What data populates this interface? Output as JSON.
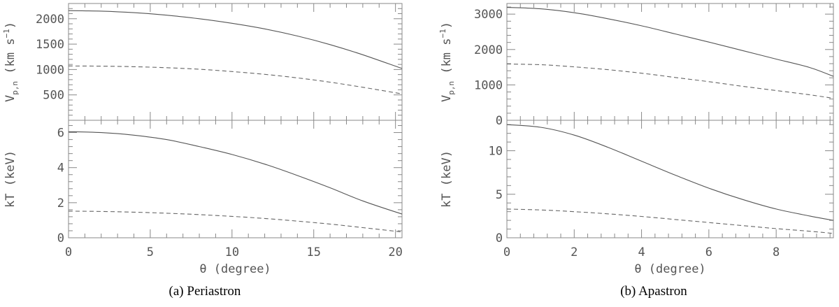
{
  "chart_data": [
    {
      "panel": "a",
      "caption": "(a)  Periastron",
      "type": "line",
      "xlabel": "θ (degree)",
      "xlim": [
        0,
        20.4
      ],
      "xticks": [
        0,
        5,
        10,
        15,
        20
      ],
      "subplots": [
        {
          "ylabel": "V",
          "ylabel_sub": "p,n",
          "ylabel_unit": "(km s",
          "ylabel_sup": "−1",
          "ylabel_close": ")",
          "ylim": [
            0,
            2300
          ],
          "yticks": [
            0,
            500,
            1000,
            1500,
            2000
          ],
          "ytick_labels": [
            "",
            "500",
            "1000",
            "1500",
            "2000"
          ],
          "series": [
            {
              "style": "solid",
              "x": [
                0,
                2,
                4,
                6,
                8,
                10,
                12,
                14,
                16,
                18,
                20.4
              ],
              "y": [
                2160,
                2150,
                2120,
                2070,
                2000,
                1910,
                1800,
                1660,
                1490,
                1290,
                1020
              ]
            },
            {
              "style": "dashed",
              "x": [
                0,
                2,
                4,
                6,
                8,
                10,
                12,
                14,
                16,
                18,
                20.4
              ],
              "y": [
                1070,
                1066,
                1055,
                1035,
                1005,
                960,
                905,
                835,
                750,
                650,
                520
              ]
            }
          ]
        },
        {
          "ylabel": "kT (keV)",
          "ylim": [
            0,
            6.7
          ],
          "yticks": [
            0,
            2,
            4,
            6
          ],
          "ytick_labels": [
            "0",
            "2",
            "4",
            "6"
          ],
          "series": [
            {
              "style": "solid",
              "x": [
                0,
                2,
                4,
                6,
                8,
                10,
                12,
                14,
                16,
                18,
                20.4
              ],
              "y": [
                6.05,
                6.0,
                5.85,
                5.6,
                5.2,
                4.75,
                4.2,
                3.55,
                2.85,
                2.1,
                1.35
              ]
            },
            {
              "style": "dashed",
              "x": [
                0,
                2,
                4,
                6,
                8,
                10,
                12,
                14,
                16,
                18,
                20.4
              ],
              "y": [
                1.52,
                1.5,
                1.46,
                1.4,
                1.32,
                1.22,
                1.1,
                0.95,
                0.78,
                0.58,
                0.33
              ]
            }
          ]
        }
      ]
    },
    {
      "panel": "b",
      "caption": "(b)  Apastron",
      "type": "line",
      "xlabel": "θ (degree)",
      "xlim": [
        0,
        9.7
      ],
      "xticks": [
        0,
        2,
        4,
        6,
        8
      ],
      "subplots": [
        {
          "ylabel": "V",
          "ylabel_sub": "p,n",
          "ylabel_unit": "(km s",
          "ylabel_sup": "−1",
          "ylabel_close": ")",
          "ylim": [
            0,
            3300
          ],
          "yticks": [
            0,
            1000,
            2000,
            3000
          ],
          "ytick_labels": [
            "0",
            "1000",
            "2000",
            "3000"
          ],
          "series": [
            {
              "style": "solid",
              "x": [
                0,
                1,
                2,
                3,
                4,
                5,
                6,
                7,
                8,
                9,
                9.7
              ],
              "y": [
                3190,
                3150,
                3040,
                2870,
                2670,
                2440,
                2210,
                1970,
                1730,
                1490,
                1240
              ]
            },
            {
              "style": "dashed",
              "x": [
                0,
                1,
                2,
                3,
                4,
                5,
                6,
                7,
                8,
                9,
                9.7
              ],
              "y": [
                1590,
                1570,
                1510,
                1430,
                1330,
                1210,
                1090,
                960,
                840,
                720,
                620
              ]
            }
          ]
        },
        {
          "ylabel": "kT (keV)",
          "ylim": [
            0,
            13.5
          ],
          "yticks": [
            0,
            5,
            10
          ],
          "ytick_labels": [
            "0",
            "5",
            "10"
          ],
          "series": [
            {
              "style": "solid",
              "x": [
                0,
                1,
                2,
                3,
                4,
                5,
                6,
                7,
                8,
                9,
                9.7
              ],
              "y": [
                13.0,
                12.7,
                11.8,
                10.4,
                8.8,
                7.2,
                5.7,
                4.4,
                3.3,
                2.5,
                2.0
              ]
            },
            {
              "style": "dashed",
              "x": [
                0,
                1,
                2,
                3,
                4,
                5,
                6,
                7,
                8,
                9,
                9.7
              ],
              "y": [
                3.3,
                3.2,
                3.0,
                2.75,
                2.45,
                2.1,
                1.75,
                1.4,
                1.05,
                0.75,
                0.5
              ]
            }
          ]
        }
      ]
    }
  ]
}
